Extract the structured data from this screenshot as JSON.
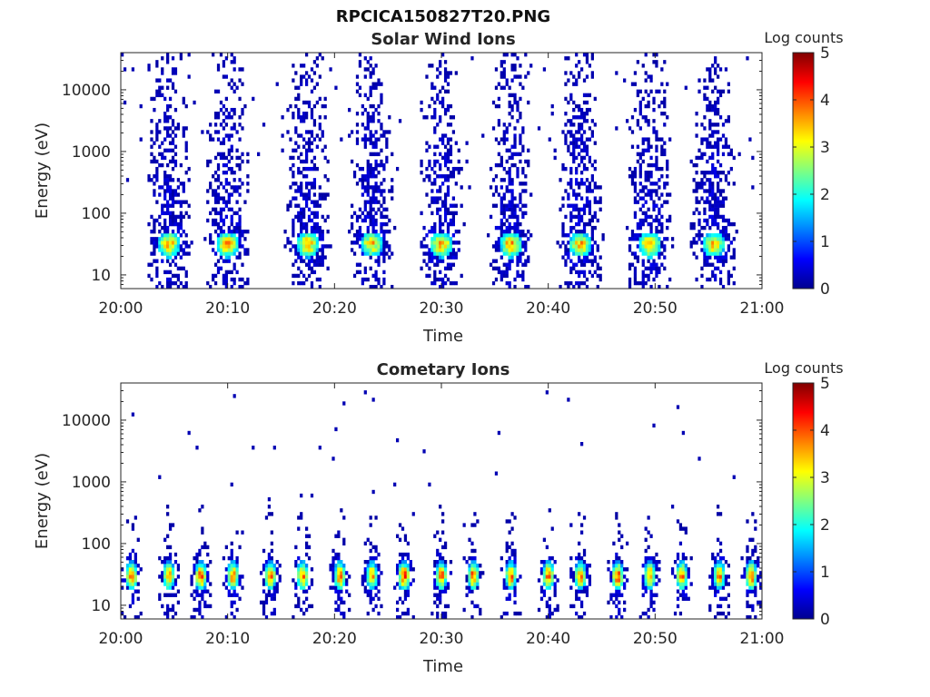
{
  "figure": {
    "title": "RPCICA150827T20.PNG"
  },
  "colorbar_label": "Log counts",
  "colormap": [
    "#00008f",
    "#0000ff",
    "#0080ff",
    "#00ffff",
    "#80ff80",
    "#ffff00",
    "#ff8000",
    "#ff0000",
    "#800000"
  ],
  "chart_data": [
    {
      "type": "heatmap",
      "title": "Solar Wind Ions",
      "xlabel": "Time",
      "ylabel": "Energy (eV)",
      "x_ticks": [
        "20:00",
        "20:10",
        "20:20",
        "20:30",
        "20:40",
        "20:50",
        "21:00"
      ],
      "xlim": [
        "20:00",
        "21:00"
      ],
      "yscale": "log",
      "ylim": [
        6,
        40000
      ],
      "y_ticks": [
        10,
        100,
        1000,
        10000
      ],
      "y_tick_labels": [
        "10",
        "100",
        "1000",
        "10000"
      ],
      "colorbar": {
        "label": "Log counts",
        "range": [
          0,
          5
        ],
        "ticks": [
          "0",
          "1",
          "2",
          "3",
          "4",
          "5"
        ]
      },
      "bursts": [
        {
          "center_min": 4.5,
          "peak_energy_ev": 30,
          "peak_log_counts": 2.9
        },
        {
          "center_min": 10.0,
          "peak_energy_ev": 30,
          "peak_log_counts": 2.9
        },
        {
          "center_min": 17.5,
          "peak_energy_ev": 30,
          "peak_log_counts": 2.9
        },
        {
          "center_min": 23.5,
          "peak_energy_ev": 30,
          "peak_log_counts": 2.7
        },
        {
          "center_min": 30.0,
          "peak_energy_ev": 30,
          "peak_log_counts": 2.9
        },
        {
          "center_min": 36.5,
          "peak_energy_ev": 30,
          "peak_log_counts": 2.9
        },
        {
          "center_min": 43.0,
          "peak_energy_ev": 30,
          "peak_log_counts": 2.8
        },
        {
          "center_min": 49.5,
          "peak_energy_ev": 30,
          "peak_log_counts": 2.9
        },
        {
          "center_min": 55.5,
          "peak_energy_ev": 30,
          "peak_log_counts": 2.8
        }
      ]
    },
    {
      "type": "heatmap",
      "title": "Cometary Ions",
      "xlabel": "Time",
      "ylabel": "Energy (eV)",
      "x_ticks": [
        "20:00",
        "20:10",
        "20:20",
        "20:30",
        "20:40",
        "20:50",
        "21:00"
      ],
      "xlim": [
        "20:00",
        "21:00"
      ],
      "yscale": "log",
      "ylim": [
        6,
        40000
      ],
      "y_ticks": [
        10,
        100,
        1000,
        10000
      ],
      "y_tick_labels": [
        "10",
        "100",
        "1000",
        "10000"
      ],
      "colorbar": {
        "label": "Log counts",
        "range": [
          0,
          5
        ],
        "ticks": [
          "0",
          "1",
          "2",
          "3",
          "4",
          "5"
        ]
      },
      "bursts": [
        {
          "center_min": 1.0,
          "peak_energy_ev": 30,
          "peak_log_counts": 3.7
        },
        {
          "center_min": 4.5,
          "peak_energy_ev": 30,
          "peak_log_counts": 3.5
        },
        {
          "center_min": 7.5,
          "peak_energy_ev": 30,
          "peak_log_counts": 3.8
        },
        {
          "center_min": 10.5,
          "peak_energy_ev": 30,
          "peak_log_counts": 3.4
        },
        {
          "center_min": 14.0,
          "peak_energy_ev": 30,
          "peak_log_counts": 3.6
        },
        {
          "center_min": 17.0,
          "peak_energy_ev": 30,
          "peak_log_counts": 3.5
        },
        {
          "center_min": 20.5,
          "peak_energy_ev": 30,
          "peak_log_counts": 3.6
        },
        {
          "center_min": 23.5,
          "peak_energy_ev": 30,
          "peak_log_counts": 3.3
        },
        {
          "center_min": 26.5,
          "peak_energy_ev": 30,
          "peak_log_counts": 3.8
        },
        {
          "center_min": 30.0,
          "peak_energy_ev": 30,
          "peak_log_counts": 3.5
        },
        {
          "center_min": 33.0,
          "peak_energy_ev": 30,
          "peak_log_counts": 3.6
        },
        {
          "center_min": 36.5,
          "peak_energy_ev": 30,
          "peak_log_counts": 3.5
        },
        {
          "center_min": 40.0,
          "peak_energy_ev": 30,
          "peak_log_counts": 3.7
        },
        {
          "center_min": 43.0,
          "peak_energy_ev": 30,
          "peak_log_counts": 3.4
        },
        {
          "center_min": 46.5,
          "peak_energy_ev": 30,
          "peak_log_counts": 3.7
        },
        {
          "center_min": 49.5,
          "peak_energy_ev": 30,
          "peak_log_counts": 3.5
        },
        {
          "center_min": 52.5,
          "peak_energy_ev": 30,
          "peak_log_counts": 3.6
        },
        {
          "center_min": 56.0,
          "peak_energy_ev": 30,
          "peak_log_counts": 3.4
        },
        {
          "center_min": 59.0,
          "peak_energy_ev": 30,
          "peak_log_counts": 3.6
        }
      ]
    }
  ]
}
